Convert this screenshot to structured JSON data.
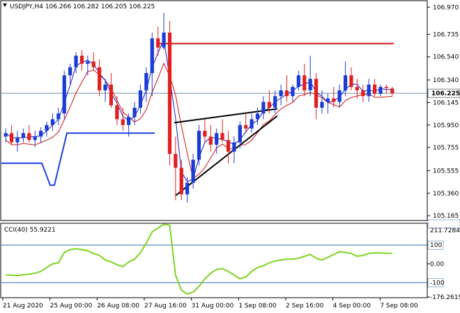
{
  "chart_data": [
    {
      "type": "candlestick",
      "title": "USDJPY,H4  106.266 106.282 106.205 106.225",
      "ylim": [
        105.13,
        107.02
      ],
      "y_ticks": [
        "106.970",
        "106.735",
        "106.540",
        "106.340",
        "106.145",
        "105.950",
        "105.755",
        "105.555",
        "105.360",
        "105.165"
      ],
      "price_label": "106.225",
      "x_ticks": [
        "21 Aug 2020",
        "25 Aug 00:00",
        "26 Aug 08:00",
        "27 Aug 16:00",
        "31 Aug 00:00",
        "1 Sep 08:00",
        "2 Sep 16:00",
        "4 Sep 00:00",
        "7 Sep 08:00"
      ],
      "candles": [
        [
          105.85,
          105.92,
          105.8,
          105.88
        ],
        [
          105.88,
          105.95,
          105.78,
          105.8
        ],
        [
          105.8,
          105.9,
          105.72,
          105.84
        ],
        [
          105.84,
          105.92,
          105.8,
          105.88
        ],
        [
          105.88,
          105.95,
          105.8,
          105.82
        ],
        [
          105.82,
          105.9,
          105.76,
          105.85
        ],
        [
          105.85,
          105.93,
          105.8,
          105.9
        ],
        [
          105.9,
          105.98,
          105.85,
          105.95
        ],
        [
          105.95,
          106.05,
          105.9,
          106.0
        ],
        [
          106.0,
          106.1,
          105.95,
          106.05
        ],
        [
          106.05,
          106.42,
          106.0,
          106.38
        ],
        [
          106.38,
          106.48,
          106.3,
          106.45
        ],
        [
          106.45,
          106.58,
          106.4,
          106.55
        ],
        [
          106.55,
          106.6,
          106.42,
          106.48
        ],
        [
          106.48,
          106.55,
          106.38,
          106.5
        ],
        [
          106.5,
          106.58,
          106.42,
          106.45
        ],
        [
          106.45,
          106.52,
          106.2,
          106.25
        ],
        [
          106.25,
          106.35,
          106.15,
          106.3
        ],
        [
          106.3,
          106.4,
          106.1,
          106.12
        ],
        [
          106.12,
          106.2,
          105.95,
          106.0
        ],
        [
          106.0,
          106.1,
          105.9,
          105.95
        ],
        [
          105.95,
          106.05,
          105.85,
          106.02
        ],
        [
          106.02,
          106.15,
          105.95,
          106.1
        ],
        [
          106.1,
          106.3,
          106.05,
          106.25
        ],
        [
          106.25,
          106.45,
          106.15,
          106.4
        ],
        [
          106.4,
          106.75,
          106.2,
          106.7
        ],
        [
          106.7,
          106.8,
          106.55,
          106.62
        ],
        [
          106.62,
          106.92,
          106.6,
          106.75
        ],
        [
          106.75,
          106.85,
          105.6,
          105.7
        ],
        [
          105.7,
          105.85,
          105.3,
          105.58
        ],
        [
          105.58,
          105.65,
          105.3,
          105.35
        ],
        [
          105.35,
          105.5,
          105.28,
          105.45
        ],
        [
          105.45,
          105.7,
          105.4,
          105.65
        ],
        [
          105.65,
          105.95,
          105.6,
          105.9
        ],
        [
          105.9,
          106.0,
          105.8,
          105.85
        ],
        [
          105.85,
          105.95,
          105.72,
          105.78
        ],
        [
          105.78,
          105.92,
          105.7,
          105.88
        ],
        [
          105.88,
          106.0,
          105.8,
          105.82
        ],
        [
          105.82,
          105.9,
          105.62,
          105.72
        ],
        [
          105.72,
          105.85,
          105.62,
          105.8
        ],
        [
          105.8,
          105.98,
          105.75,
          105.95
        ],
        [
          105.95,
          106.05,
          105.88,
          105.92
        ],
        [
          105.92,
          106.05,
          105.88,
          106.0
        ],
        [
          106.0,
          106.1,
          105.95,
          106.05
        ],
        [
          106.05,
          106.2,
          106.0,
          106.15
        ],
        [
          106.15,
          106.25,
          106.05,
          106.1
        ],
        [
          106.1,
          106.25,
          106.05,
          106.2
        ],
        [
          106.2,
          106.3,
          106.12,
          106.25
        ],
        [
          106.25,
          106.38,
          106.15,
          106.2
        ],
        [
          106.2,
          106.3,
          106.15,
          106.28
        ],
        [
          106.28,
          106.42,
          106.25,
          106.38
        ],
        [
          106.38,
          106.48,
          106.2,
          106.25
        ],
        [
          106.25,
          106.55,
          106.2,
          106.35
        ],
        [
          106.35,
          106.4,
          106.0,
          106.1
        ],
        [
          106.1,
          106.25,
          106.05,
          106.15
        ],
        [
          106.15,
          106.22,
          106.05,
          106.18
        ],
        [
          106.18,
          106.28,
          106.1,
          106.15
        ],
        [
          106.15,
          106.3,
          106.1,
          106.25
        ],
        [
          106.25,
          106.5,
          106.2,
          106.38
        ],
        [
          106.38,
          106.45,
          106.25,
          106.28
        ],
        [
          106.28,
          106.35,
          106.18,
          106.25
        ],
        [
          106.25,
          106.3,
          106.15,
          106.2
        ],
        [
          106.2,
          106.35,
          106.15,
          106.3
        ],
        [
          106.3,
          106.35,
          106.2,
          106.22
        ],
        [
          106.22,
          106.3,
          106.2,
          106.28
        ],
        [
          106.28,
          106.3,
          106.22,
          106.27
        ],
        [
          106.266,
          106.282,
          106.205,
          106.225
        ]
      ],
      "colors": {
        "bull": "#1a3bd6",
        "bear": "#e02020",
        "ma_fast": "#1a1ad0",
        "ma_slow": "#d01010",
        "step_line": "#1f3fe0",
        "resistance": "#d01010",
        "trendline": "#000000",
        "price_line": "#6f8fa8",
        "cci": "#7ed321",
        "cci_level": "#3a6ea5"
      }
    },
    {
      "type": "line",
      "title": "CCI(40) 55.9221",
      "ylim": [
        -176.2619,
        211.7284
      ],
      "y_ticks": [
        "211.7284",
        "100",
        "0.00",
        "-100",
        "-176.2619"
      ],
      "values": [
        -60,
        -60,
        -62,
        -58,
        -55,
        -50,
        -40,
        -20,
        0,
        5,
        60,
        75,
        80,
        75,
        70,
        55,
        45,
        20,
        10,
        -5,
        -15,
        10,
        25,
        60,
        110,
        170,
        190,
        210,
        205,
        -60,
        -140,
        -160,
        -150,
        -120,
        -80,
        -50,
        -30,
        -25,
        -40,
        -60,
        -80,
        -70,
        -40,
        -20,
        -10,
        5,
        15,
        20,
        25,
        25,
        30,
        40,
        50,
        30,
        20,
        35,
        50,
        65,
        60,
        55,
        40,
        45,
        55,
        58,
        58,
        56,
        55.9221
      ]
    }
  ]
}
